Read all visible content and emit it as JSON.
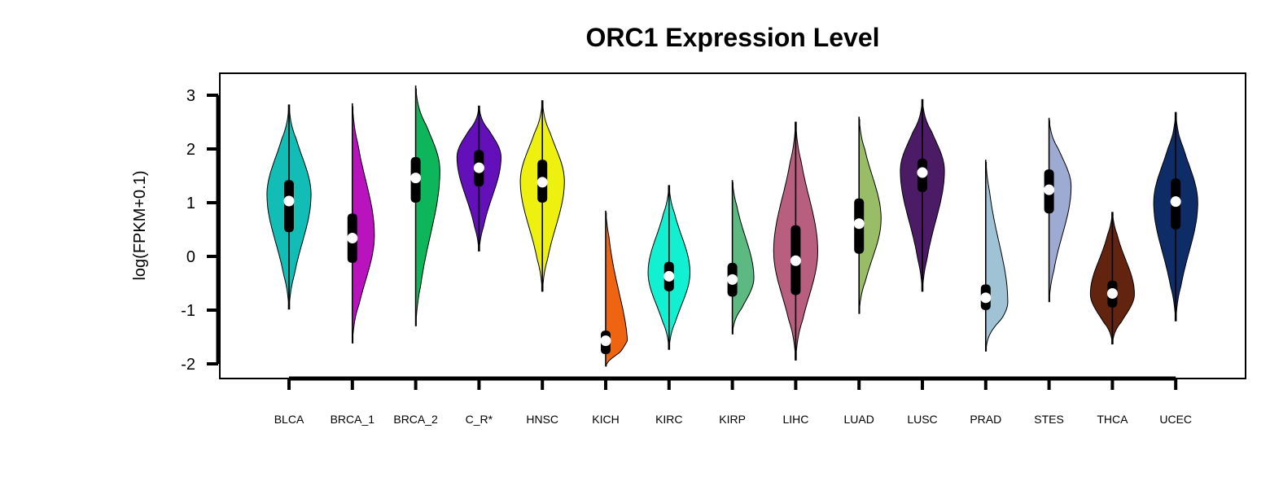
{
  "chart_data": {
    "type": "violin",
    "title": "ORC1 Expression Level",
    "xlabel": "",
    "ylabel": "log(FPKM+0.1)",
    "ylim": [
      -2.25,
      3.4
    ],
    "yticks": [
      -2,
      -1,
      0,
      1,
      2,
      3
    ],
    "ytick_labels": [
      "-2",
      "-1",
      "0",
      "1",
      "2",
      "3"
    ],
    "grid": false,
    "legend": "none",
    "series": [
      {
        "category": "BLCA",
        "color": "#12BDB6",
        "min": -0.98,
        "max": 2.82,
        "q1": 0.45,
        "median": 1.03,
        "q3": 1.42,
        "mode": 1.15,
        "width": 0.82,
        "skew": 0.0
      },
      {
        "category": "BRCA_1",
        "color": "#B913BD",
        "min": -1.62,
        "max": 2.85,
        "q1": -0.12,
        "median": 0.34,
        "q3": 0.8,
        "mode": 0.4,
        "width": 0.82,
        "skew": 0.2
      },
      {
        "category": "BRCA_2",
        "color": "#0DB65A",
        "min": -1.3,
        "max": 3.18,
        "q1": 1.0,
        "median": 1.46,
        "q3": 1.85,
        "mode": 1.6,
        "width": 0.9,
        "skew": -0.15
      },
      {
        "category": "C_R*",
        "color": "#6310BA",
        "min": 0.1,
        "max": 2.8,
        "q1": 1.3,
        "median": 1.65,
        "q3": 1.98,
        "mode": 1.85,
        "width": 0.82,
        "skew": 0.0
      },
      {
        "category": "HNSC",
        "color": "#EEF010",
        "min": -0.65,
        "max": 2.9,
        "q1": 1.0,
        "median": 1.38,
        "q3": 1.8,
        "mode": 1.4,
        "width": 0.82,
        "skew": 0.0
      },
      {
        "category": "KICH",
        "color": "#EE6411",
        "min": -2.05,
        "max": 0.85,
        "q1": -1.82,
        "median": -1.57,
        "q3": -1.38,
        "mode": -1.75,
        "width": 0.82,
        "skew": 0.0
      },
      {
        "category": "KIRC",
        "color": "#12F0D2",
        "min": -1.73,
        "max": 1.32,
        "q1": -0.65,
        "median": -0.37,
        "q3": -0.1,
        "mode": -0.3,
        "width": 0.78,
        "skew": 0.0
      },
      {
        "category": "KIRP",
        "color": "#5CB981",
        "min": -1.45,
        "max": 1.42,
        "q1": -0.75,
        "median": -0.43,
        "q3": -0.12,
        "mode": -0.4,
        "width": 0.8,
        "skew": 0.0
      },
      {
        "category": "LIHC",
        "color": "#B85E7E",
        "min": -1.93,
        "max": 2.5,
        "q1": -0.72,
        "median": -0.08,
        "q3": 0.58,
        "mode": 0.1,
        "width": 0.82,
        "skew": 0.0
      },
      {
        "category": "LUAD",
        "color": "#98BD66",
        "min": -1.07,
        "max": 2.6,
        "q1": 0.05,
        "median": 0.61,
        "q3": 1.08,
        "mode": 0.7,
        "width": 0.82,
        "skew": 0.0
      },
      {
        "category": "LUSC",
        "color": "#4C1B66",
        "min": -0.65,
        "max": 2.92,
        "q1": 1.2,
        "median": 1.56,
        "q3": 1.82,
        "mode": 1.6,
        "width": 0.82,
        "skew": 0.0
      },
      {
        "category": "PRAD",
        "color": "#9FC2D4",
        "min": -1.77,
        "max": 1.8,
        "q1": -1.0,
        "median": -0.77,
        "q3": -0.52,
        "mode": -0.85,
        "width": 0.82,
        "skew": 0.0
      },
      {
        "category": "STES",
        "color": "#9DAAD1",
        "min": -0.85,
        "max": 2.58,
        "q1": 0.8,
        "median": 1.24,
        "q3": 1.62,
        "mode": 1.3,
        "width": 0.82,
        "skew": 0.0
      },
      {
        "category": "THCA",
        "color": "#62230F",
        "min": -1.63,
        "max": 0.82,
        "q1": -0.95,
        "median": -0.69,
        "q3": -0.45,
        "mode": -0.7,
        "width": 0.82,
        "skew": 0.0
      },
      {
        "category": "UCEC",
        "color": "#0E2D66",
        "min": -1.2,
        "max": 2.68,
        "q1": 0.5,
        "median": 1.02,
        "q3": 1.45,
        "mode": 1.0,
        "width": 0.82,
        "skew": 0.0
      }
    ]
  }
}
